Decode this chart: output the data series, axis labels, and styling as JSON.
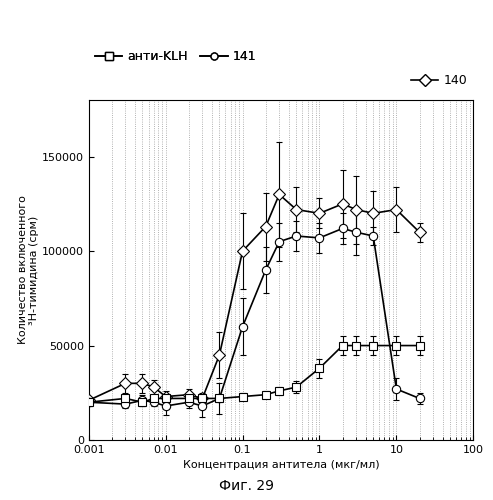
{
  "title": "",
  "xlabel": "Концентрация антитела (мкг/мл)",
  "ylabel": "Количество включенного\n³H-тимидина (срм)",
  "caption": "Фиг. 29",
  "xlim": [
    0.001,
    100
  ],
  "ylim": [
    0,
    180000
  ],
  "yticks": [
    0,
    50000,
    100000,
    150000
  ],
  "ytick_labels": [
    "0",
    "50000",
    "100000",
    "150000"
  ],
  "xticks": [
    0.001,
    0.01,
    0.1,
    1,
    10,
    100
  ],
  "xtick_labels": [
    "0.001",
    "0.01",
    "0.1",
    "1",
    "10",
    "100"
  ],
  "legend_140": "140",
  "legend_141": "141",
  "legend_KLH": "анти-KLH",
  "x_140": [
    0.001,
    0.003,
    0.005,
    0.007,
    0.01,
    0.02,
    0.03,
    0.05,
    0.1,
    0.2,
    0.3,
    0.5,
    1.0,
    2.0,
    3.0,
    5.0,
    10.0,
    20.0
  ],
  "y_140": [
    21000,
    30000,
    30000,
    28000,
    23000,
    24000,
    22000,
    45000,
    100000,
    113000,
    130000,
    122000,
    120000,
    125000,
    122000,
    120000,
    122000,
    110000
  ],
  "yerr_140_lo": [
    2000,
    5000,
    5000,
    4000,
    3000,
    3000,
    3000,
    12000,
    20000,
    18000,
    28000,
    12000,
    8000,
    18000,
    18000,
    12000,
    12000,
    5000
  ],
  "yerr_140_hi": [
    2000,
    5000,
    5000,
    4000,
    3000,
    3000,
    3000,
    12000,
    20000,
    18000,
    28000,
    12000,
    8000,
    18000,
    18000,
    12000,
    12000,
    5000
  ],
  "x_141": [
    0.001,
    0.003,
    0.005,
    0.007,
    0.01,
    0.02,
    0.03,
    0.05,
    0.1,
    0.2,
    0.3,
    0.5,
    1.0,
    2.0,
    3.0,
    5.0,
    10.0,
    20.0
  ],
  "y_141": [
    20000,
    19000,
    21000,
    20000,
    18000,
    20000,
    18000,
    22000,
    60000,
    90000,
    105000,
    108000,
    107000,
    112000,
    110000,
    108000,
    27000,
    22000
  ],
  "yerr_141_lo": [
    2000,
    2000,
    3000,
    2000,
    5000,
    3000,
    6000,
    8000,
    15000,
    12000,
    10000,
    8000,
    8000,
    8000,
    12000,
    5000,
    6000,
    3000
  ],
  "yerr_141_hi": [
    2000,
    2000,
    3000,
    2000,
    5000,
    3000,
    6000,
    8000,
    15000,
    12000,
    10000,
    8000,
    8000,
    8000,
    12000,
    5000,
    6000,
    3000
  ],
  "x_KLH": [
    0.001,
    0.003,
    0.005,
    0.007,
    0.01,
    0.02,
    0.03,
    0.05,
    0.1,
    0.2,
    0.3,
    0.5,
    1.0,
    2.0,
    3.0,
    5.0,
    10.0,
    20.0
  ],
  "y_KLH": [
    20000,
    22000,
    20000,
    22000,
    22000,
    22000,
    22000,
    22000,
    23000,
    24000,
    26000,
    28000,
    38000,
    50000,
    50000,
    50000,
    50000,
    50000
  ],
  "yerr_KLH_lo": [
    2000,
    2000,
    2000,
    2000,
    2000,
    2000,
    2000,
    2000,
    2000,
    2000,
    2000,
    3000,
    5000,
    5000,
    5000,
    5000,
    5000,
    5000
  ],
  "yerr_KLH_hi": [
    2000,
    2000,
    2000,
    2000,
    2000,
    2000,
    2000,
    2000,
    2000,
    2000,
    2000,
    3000,
    5000,
    5000,
    5000,
    5000,
    5000,
    5000
  ],
  "color_all": "#000000",
  "marker_140": "D",
  "marker_141": "o",
  "marker_KLH": "s",
  "markersize_140": 6,
  "markersize_141": 6,
  "markersize_KLH": 6,
  "linewidth": 1.2,
  "capsize": 2,
  "bg_color": "#ffffff"
}
